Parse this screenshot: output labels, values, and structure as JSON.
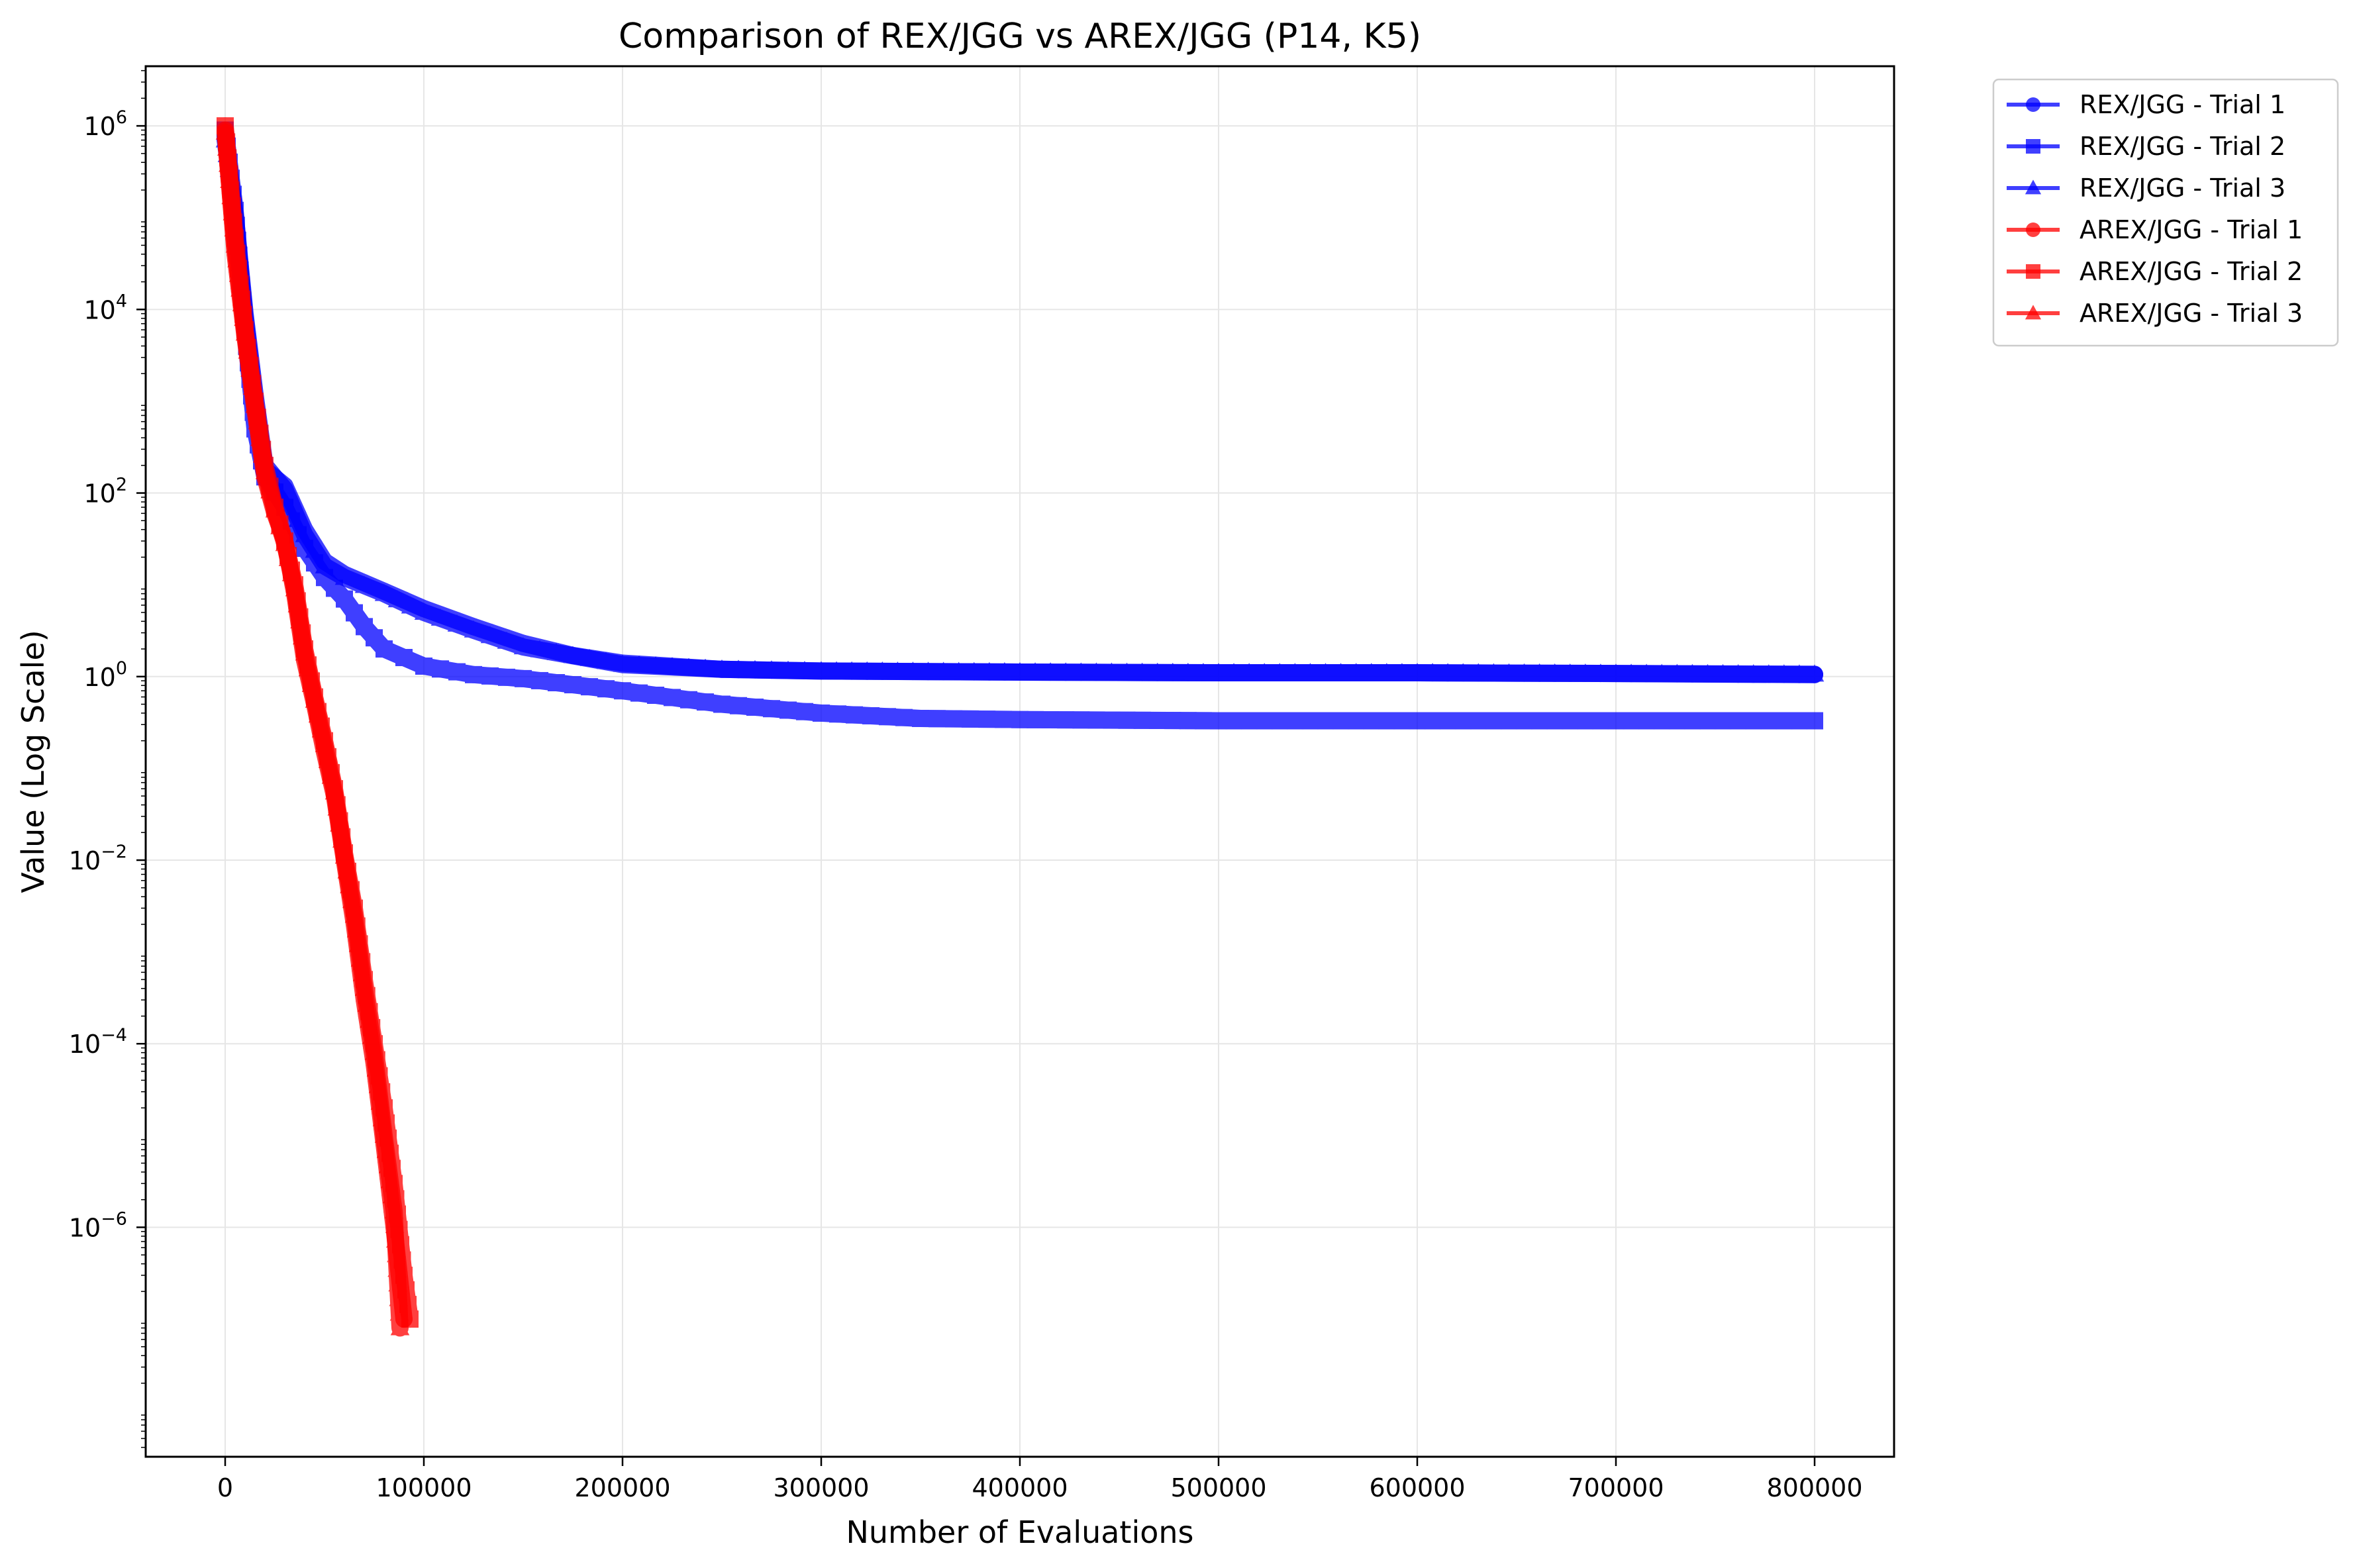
{
  "chart_data": {
    "type": "line",
    "title": "Comparison of REX/JGG vs AREX/JGG (P14, K5)",
    "xlabel": "Number of Evaluations",
    "ylabel": "Value (Log Scale)",
    "xlim": [
      -40000,
      840000
    ],
    "ylim_log10": [
      -8.5,
      6.65
    ],
    "yscale": "log",
    "grid": true,
    "legend_position": "outside-top-right",
    "x_ticks": [
      0,
      100000,
      200000,
      300000,
      400000,
      500000,
      600000,
      700000,
      800000
    ],
    "x_tick_labels": [
      "0",
      "100000",
      "200000",
      "300000",
      "400000",
      "500000",
      "600000",
      "700000",
      "800000"
    ],
    "y_ticks_log10": [
      6,
      4,
      2,
      0,
      -2,
      -4,
      -6
    ],
    "y_tick_labels": [
      {
        "base": "10",
        "exp": "6"
      },
      {
        "base": "10",
        "exp": "4"
      },
      {
        "base": "10",
        "exp": "2"
      },
      {
        "base": "10",
        "exp": "0"
      },
      {
        "base": "10",
        "exp": "−2"
      },
      {
        "base": "10",
        "exp": "−4"
      },
      {
        "base": "10",
        "exp": "−6"
      }
    ],
    "series": [
      {
        "name": "REX/JGG - Trial 1",
        "color": "#0000ff",
        "marker": "circle",
        "x": [
          0,
          5000,
          10000,
          15000,
          20000,
          30000,
          40000,
          50000,
          60000,
          80000,
          100000,
          125000,
          150000,
          175000,
          200000,
          250000,
          300000,
          400000,
          500000,
          600000,
          700000,
          800000
        ],
        "y": [
          800000,
          100000,
          8000,
          1000,
          180,
          120,
          40,
          18,
          13,
          8.5,
          5.5,
          3.5,
          2.3,
          1.7,
          1.4,
          1.2,
          1.15,
          1.12,
          1.1,
          1.1,
          1.08,
          1.05
        ]
      },
      {
        "name": "REX/JGG - Trial 2",
        "color": "#0000ff",
        "marker": "square",
        "x": [
          0,
          5000,
          10000,
          15000,
          20000,
          30000,
          40000,
          50000,
          60000,
          70000,
          80000,
          100000,
          125000,
          150000,
          200000,
          250000,
          300000,
          350000,
          400000,
          500000,
          600000,
          700000,
          800000
        ],
        "y": [
          900000,
          120000,
          6000,
          500,
          150,
          70,
          25,
          12,
          7,
          3.5,
          2,
          1.3,
          1.05,
          0.95,
          0.7,
          0.5,
          0.4,
          0.35,
          0.34,
          0.33,
          0.33,
          0.33,
          0.33
        ]
      },
      {
        "name": "REX/JGG - Trial 3",
        "color": "#0000ff",
        "marker": "triangle",
        "x": [
          0,
          5000,
          10000,
          15000,
          20000,
          30000,
          40000,
          50000,
          60000,
          80000,
          100000,
          125000,
          150000,
          200000,
          250000,
          300000,
          400000,
          500000,
          600000,
          700000,
          800000
        ],
        "y": [
          700000,
          110000,
          9000,
          1200,
          200,
          110,
          35,
          16,
          12,
          8,
          5,
          3.2,
          2.1,
          1.35,
          1.2,
          1.15,
          1.12,
          1.1,
          1.1,
          1.08,
          1.06
        ]
      },
      {
        "name": "AREX/JGG - Trial 1",
        "color": "#ff0000",
        "marker": "circle",
        "x": [
          0,
          5000,
          10000,
          15000,
          20000,
          25000,
          30000,
          35000,
          40000,
          45000,
          50000,
          55000,
          60000,
          65000,
          70000,
          75000,
          80000,
          85000,
          90000
        ],
        "y": [
          900000,
          40000,
          5000,
          800,
          150,
          60,
          30,
          8,
          1.5,
          0.5,
          0.15,
          0.05,
          0.01,
          0.002,
          0.0003,
          6e-05,
          8e-06,
          1e-06,
          1e-07
        ]
      },
      {
        "name": "AREX/JGG - Trial 2",
        "color": "#ff0000",
        "marker": "square",
        "x": [
          0,
          5000,
          10000,
          15000,
          20000,
          25000,
          30000,
          35000,
          40000,
          45000,
          50000,
          55000,
          60000,
          65000,
          70000,
          75000,
          80000,
          85000,
          90000,
          93000
        ],
        "y": [
          1000000,
          60000,
          6000,
          1000,
          200,
          70,
          30,
          10,
          2,
          0.6,
          0.2,
          0.06,
          0.012,
          0.003,
          0.0005,
          0.0001,
          2e-05,
          3e-06,
          3e-07,
          1e-07
        ]
      },
      {
        "name": "AREX/JGG - Trial 3",
        "color": "#ff0000",
        "marker": "triangle",
        "x": [
          0,
          5000,
          10000,
          15000,
          20000,
          25000,
          30000,
          35000,
          40000,
          45000,
          50000,
          55000,
          60000,
          65000,
          70000,
          75000,
          80000,
          85000,
          88000
        ],
        "y": [
          850000,
          50000,
          5500,
          900,
          170,
          65,
          28,
          9,
          1.8,
          0.55,
          0.18,
          0.055,
          0.011,
          0.0025,
          0.0004,
          8e-05,
          1e-05,
          1.5e-06,
          8e-08
        ]
      }
    ]
  }
}
